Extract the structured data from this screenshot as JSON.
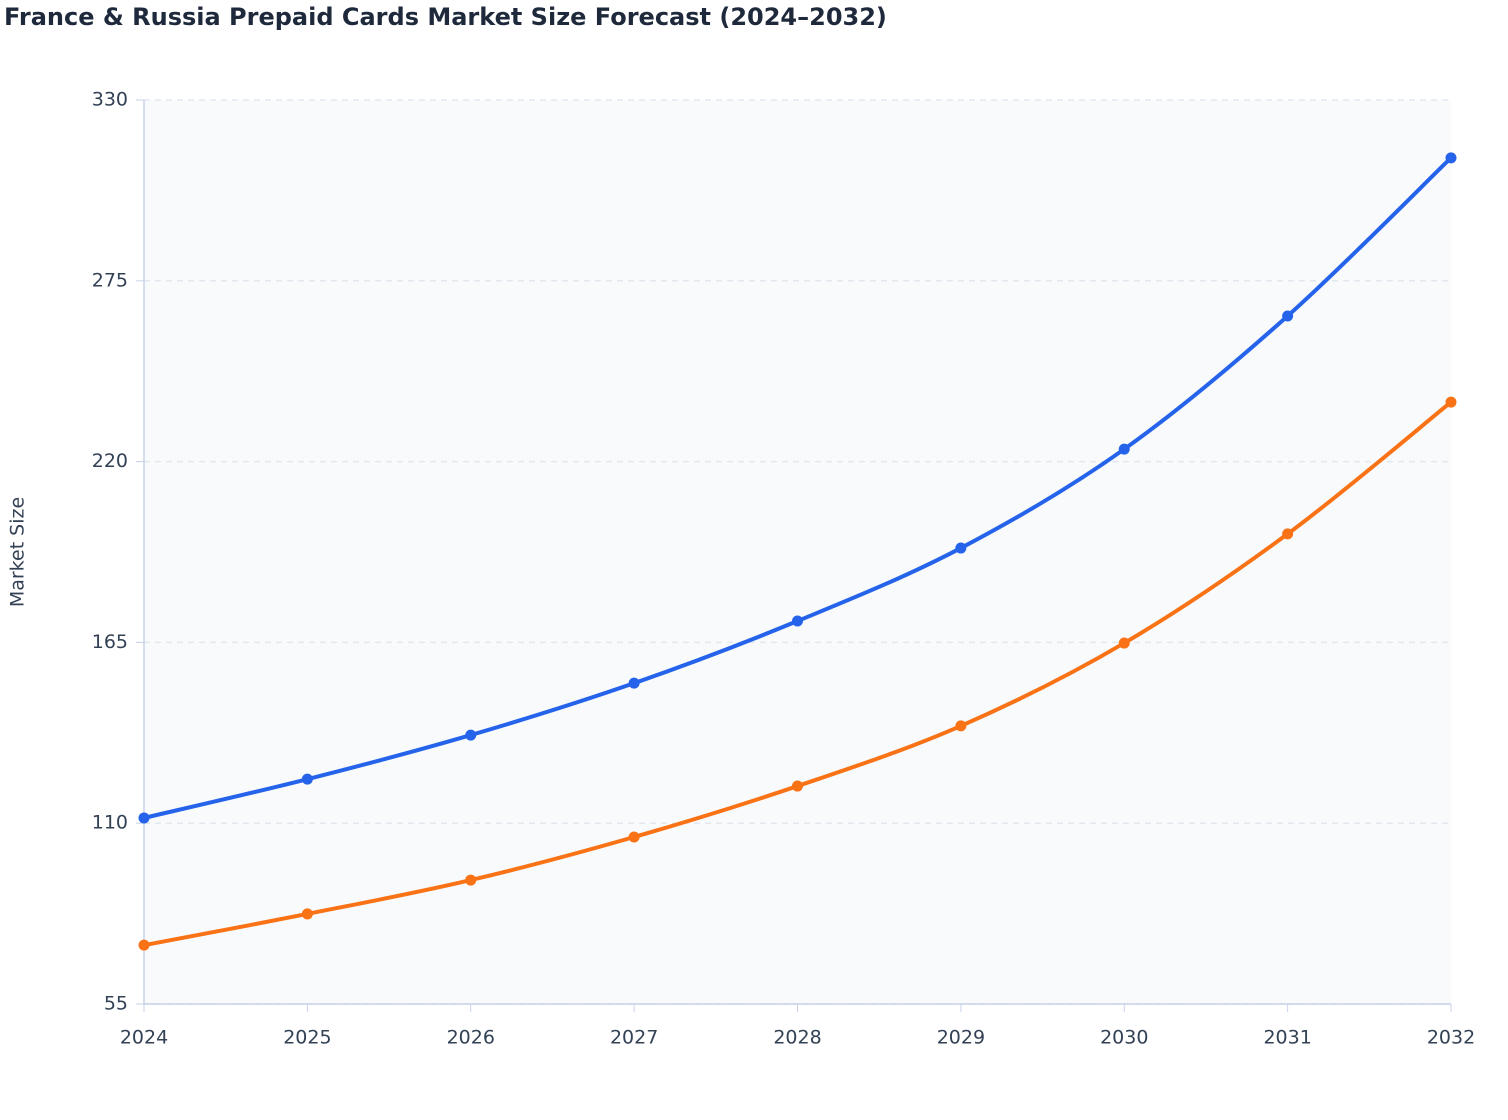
{
  "chart_data": {
    "type": "line",
    "title": "France & Russia Prepaid Cards Market Size Forecast (2024–2032)",
    "y_label": "Market Size",
    "x": [
      2024,
      2025,
      2026,
      2027,
      2028,
      2029,
      2030,
      2031,
      2032
    ],
    "xlim": [
      2024,
      2032
    ],
    "xticks": [
      2024,
      2025,
      2026,
      2027,
      2028,
      2029,
      2030,
      2031,
      2032
    ],
    "ylim": [
      55,
      330
    ],
    "yticks": [
      55,
      110,
      165,
      220,
      275,
      330
    ],
    "grid": true,
    "series": [
      {
        "color": "#2563eb",
        "values": [
          111.6,
          123.4,
          136.8,
          152.6,
          171.5,
          193.7,
          223.8,
          264.3,
          312.4
        ]
      },
      {
        "color": "#f97316",
        "values": [
          72.9,
          82.4,
          92.7,
          105.8,
          121.3,
          139.6,
          164.8,
          198,
          238.1
        ]
      }
    ]
  }
}
